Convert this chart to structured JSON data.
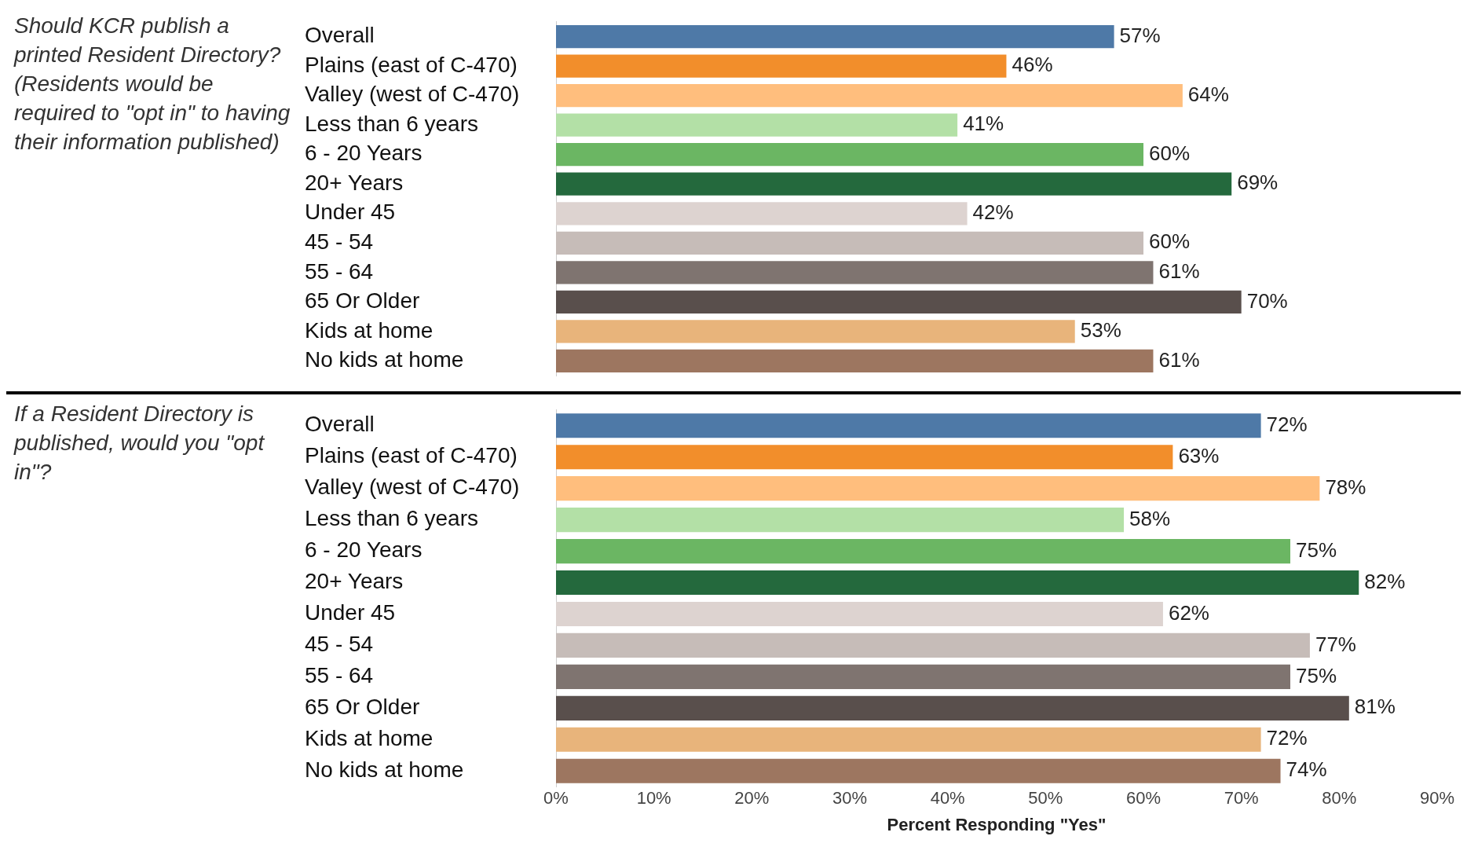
{
  "chart_data": [
    {
      "type": "bar",
      "orientation": "horizontal",
      "title": "Should KCR publish a printed Resident Directory? (Residents would be required to \"opt in\" to having their information published)",
      "categories": [
        "Overall",
        "Plains (east of C-470)",
        "Valley (west of C-470)",
        "Less than 6 years",
        "6 - 20 Years",
        "20+ Years",
        "Under 45",
        "45 - 54",
        "55 - 64",
        "65 Or Older",
        "Kids at home",
        "No kids at home"
      ],
      "values": [
        57,
        46,
        64,
        41,
        60,
        69,
        42,
        60,
        61,
        70,
        53,
        61
      ],
      "value_labels": [
        "57%",
        "46%",
        "64%",
        "41%",
        "60%",
        "69%",
        "42%",
        "60%",
        "61%",
        "70%",
        "53%",
        "61%"
      ],
      "colors": [
        "#4e79a7",
        "#f28e2b",
        "#ffbe7d",
        "#b3e0a6",
        "#6bb663",
        "#24693d",
        "#ddd3d0",
        "#c6bcb8",
        "#7f7470",
        "#594f4c",
        "#e8b47b",
        "#9d7660"
      ],
      "xlim": [
        0,
        90
      ],
      "tick_labels": "y",
      "grid": false
    },
    {
      "type": "bar",
      "orientation": "horizontal",
      "title": "If a Resident Directory is published, would you \"opt in\"?",
      "xlabel": "Percent Responding \"Yes\"",
      "categories": [
        "Overall",
        "Plains (east of C-470)",
        "Valley (west of C-470)",
        "Less than 6 years",
        "6 - 20 Years",
        "20+ Years",
        "Under 45",
        "45 - 54",
        "55 - 64",
        "65 Or Older",
        "Kids at home",
        "No kids at home"
      ],
      "values": [
        72,
        63,
        78,
        58,
        75,
        82,
        62,
        77,
        75,
        81,
        72,
        74
      ],
      "value_labels": [
        "72%",
        "63%",
        "78%",
        "58%",
        "75%",
        "82%",
        "62%",
        "77%",
        "75%",
        "81%",
        "72%",
        "74%"
      ],
      "colors": [
        "#4e79a7",
        "#f28e2b",
        "#ffbe7d",
        "#b3e0a6",
        "#6bb663",
        "#24693d",
        "#ddd3d0",
        "#c6bcb8",
        "#7f7470",
        "#594f4c",
        "#e8b47b",
        "#9d7660"
      ],
      "xlim": [
        0,
        90
      ],
      "xticks": [
        {
          "value": 0,
          "label": "0%"
        },
        {
          "value": 10,
          "label": "10%"
        },
        {
          "value": 20,
          "label": "20%"
        },
        {
          "value": 30,
          "label": "30%"
        },
        {
          "value": 40,
          "label": "40%"
        },
        {
          "value": 50,
          "label": "50%"
        },
        {
          "value": 60,
          "label": "60%"
        },
        {
          "value": 70,
          "label": "70%"
        },
        {
          "value": 80,
          "label": "80%"
        },
        {
          "value": 90,
          "label": "90%"
        }
      ],
      "grid": false
    }
  ]
}
